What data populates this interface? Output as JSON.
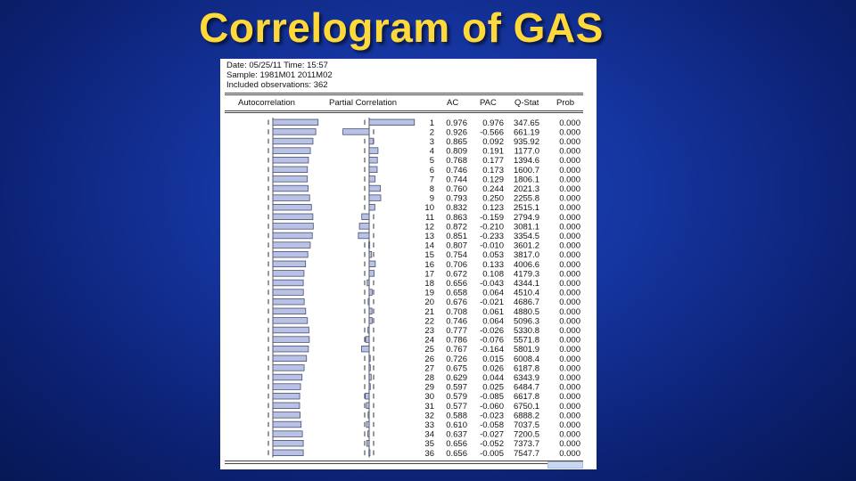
{
  "slide": {
    "title": "Correlogram of GAS"
  },
  "header": {
    "date_line": "Date: 05/25/11   Time: 15:57",
    "sample_line": "Sample: 1981M01 2011M02",
    "obs_line": "Included observations: 362"
  },
  "columns": {
    "autocorrelation": "Autocorrelation",
    "partial_correlation": "Partial Correlation",
    "ac": "AC",
    "pac": "PAC",
    "qstat": "Q-Stat",
    "prob": "Prob"
  },
  "chart_data": {
    "type": "table",
    "rows": [
      {
        "lag": "1",
        "ac": "0.976",
        "pac": "0.976",
        "q": "347.65",
        "prob": "0.000"
      },
      {
        "lag": "2",
        "ac": "0.926",
        "pac": "-0.566",
        "q": "661.19",
        "prob": "0.000"
      },
      {
        "lag": "3",
        "ac": "0.865",
        "pac": "0.092",
        "q": "935.92",
        "prob": "0.000"
      },
      {
        "lag": "4",
        "ac": "0.809",
        "pac": "0.191",
        "q": "1177.0",
        "prob": "0.000"
      },
      {
        "lag": "5",
        "ac": "0.768",
        "pac": "0.177",
        "q": "1394.6",
        "prob": "0.000"
      },
      {
        "lag": "6",
        "ac": "0.746",
        "pac": "0.173",
        "q": "1600.7",
        "prob": "0.000"
      },
      {
        "lag": "7",
        "ac": "0.744",
        "pac": "0.129",
        "q": "1806.1",
        "prob": "0.000"
      },
      {
        "lag": "8",
        "ac": "0.760",
        "pac": "0.244",
        "q": "2021.3",
        "prob": "0.000"
      },
      {
        "lag": "9",
        "ac": "0.793",
        "pac": "0.250",
        "q": "2255.8",
        "prob": "0.000"
      },
      {
        "lag": "10",
        "ac": "0.832",
        "pac": "0.123",
        "q": "2515.1",
        "prob": "0.000"
      },
      {
        "lag": "11",
        "ac": "0.863",
        "pac": "-0.159",
        "q": "2794.9",
        "prob": "0.000"
      },
      {
        "lag": "12",
        "ac": "0.872",
        "pac": "-0.210",
        "q": "3081.1",
        "prob": "0.000"
      },
      {
        "lag": "13",
        "ac": "0.851",
        "pac": "-0.233",
        "q": "3354.5",
        "prob": "0.000"
      },
      {
        "lag": "14",
        "ac": "0.807",
        "pac": "-0.010",
        "q": "3601.2",
        "prob": "0.000"
      },
      {
        "lag": "15",
        "ac": "0.754",
        "pac": "0.053",
        "q": "3817.0",
        "prob": "0.000"
      },
      {
        "lag": "16",
        "ac": "0.706",
        "pac": "0.133",
        "q": "4006.6",
        "prob": "0.000"
      },
      {
        "lag": "17",
        "ac": "0.672",
        "pac": "0.108",
        "q": "4179.3",
        "prob": "0.000"
      },
      {
        "lag": "18",
        "ac": "0.656",
        "pac": "-0.043",
        "q": "4344.1",
        "prob": "0.000"
      },
      {
        "lag": "19",
        "ac": "0.658",
        "pac": "0.064",
        "q": "4510.4",
        "prob": "0.000"
      },
      {
        "lag": "20",
        "ac": "0.676",
        "pac": "-0.021",
        "q": "4686.7",
        "prob": "0.000"
      },
      {
        "lag": "21",
        "ac": "0.708",
        "pac": "0.061",
        "q": "4880.5",
        "prob": "0.000"
      },
      {
        "lag": "22",
        "ac": "0.746",
        "pac": "0.064",
        "q": "5096.3",
        "prob": "0.000"
      },
      {
        "lag": "23",
        "ac": "0.777",
        "pac": "-0.026",
        "q": "5330.8",
        "prob": "0.000"
      },
      {
        "lag": "24",
        "ac": "0.786",
        "pac": "-0.076",
        "q": "5571.8",
        "prob": "0.000"
      },
      {
        "lag": "25",
        "ac": "0.767",
        "pac": "-0.164",
        "q": "5801.9",
        "prob": "0.000"
      },
      {
        "lag": "26",
        "ac": "0.726",
        "pac": "0.015",
        "q": "6008.4",
        "prob": "0.000"
      },
      {
        "lag": "27",
        "ac": "0.675",
        "pac": "0.026",
        "q": "6187.8",
        "prob": "0.000"
      },
      {
        "lag": "28",
        "ac": "0.629",
        "pac": "0.044",
        "q": "6343.9",
        "prob": "0.000"
      },
      {
        "lag": "29",
        "ac": "0.597",
        "pac": "0.025",
        "q": "6484.7",
        "prob": "0.000"
      },
      {
        "lag": "30",
        "ac": "0.579",
        "pac": "-0.085",
        "q": "6617.8",
        "prob": "0.000"
      },
      {
        "lag": "31",
        "ac": "0.577",
        "pac": "-0.060",
        "q": "6750.1",
        "prob": "0.000"
      },
      {
        "lag": "32",
        "ac": "0.588",
        "pac": "-0.023",
        "q": "6888.2",
        "prob": "0.000"
      },
      {
        "lag": "33",
        "ac": "0.610",
        "pac": "-0.058",
        "q": "7037.5",
        "prob": "0.000"
      },
      {
        "lag": "34",
        "ac": "0.637",
        "pac": "-0.027",
        "q": "7200.5",
        "prob": "0.000"
      },
      {
        "lag": "35",
        "ac": "0.656",
        "pac": "-0.052",
        "q": "7373.7",
        "prob": "0.000"
      },
      {
        "lag": "36",
        "ac": "0.656",
        "pac": "-0.005",
        "q": "7547.7",
        "prob": "0.000"
      }
    ]
  },
  "colors": {
    "bar_fill": "#b8c2e6",
    "bar_stroke": "#4a4f70",
    "title": "#ffd83a"
  }
}
